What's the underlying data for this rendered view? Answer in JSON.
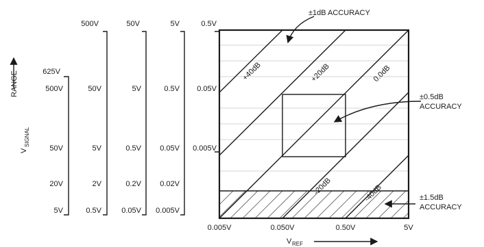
{
  "annotations": {
    "acc_1db": "±1dB ACCURACY",
    "acc_05db_line1": "±0.5dB",
    "acc_05db_line2": "ACCURACY",
    "acc_15db_line1": "±1.5dB",
    "acc_15db_line2": "ACCURACY"
  },
  "axis": {
    "y_title_main": "V",
    "y_title_sub": "SIGNAL",
    "range_label": "RANGE",
    "x_title_main": "V",
    "x_title_sub": "REF"
  },
  "x_ticks": [
    "0.005V",
    "0.050V",
    "0.50V",
    "5V"
  ],
  "range_columns": [
    {
      "top": "625V",
      "labels": [
        "500V",
        "50V",
        "20V",
        "5V"
      ]
    },
    {
      "top": "500V",
      "labels": [
        "50V",
        "5V",
        "2V",
        "0.5V"
      ]
    },
    {
      "top": "50V",
      "labels": [
        "5V",
        "0.5V",
        "0.2V",
        "0.05V"
      ]
    },
    {
      "top": "5V",
      "labels": [
        "0.5V",
        "0.05V",
        "0.02V",
        "0.005V"
      ]
    },
    {
      "top": "0.5V",
      "labels": [
        "0.05V",
        "0.005V"
      ]
    }
  ],
  "db_lines": [
    "+40dB",
    "+20dB",
    "0.0dB",
    "-20dB",
    "-40dB"
  ]
}
